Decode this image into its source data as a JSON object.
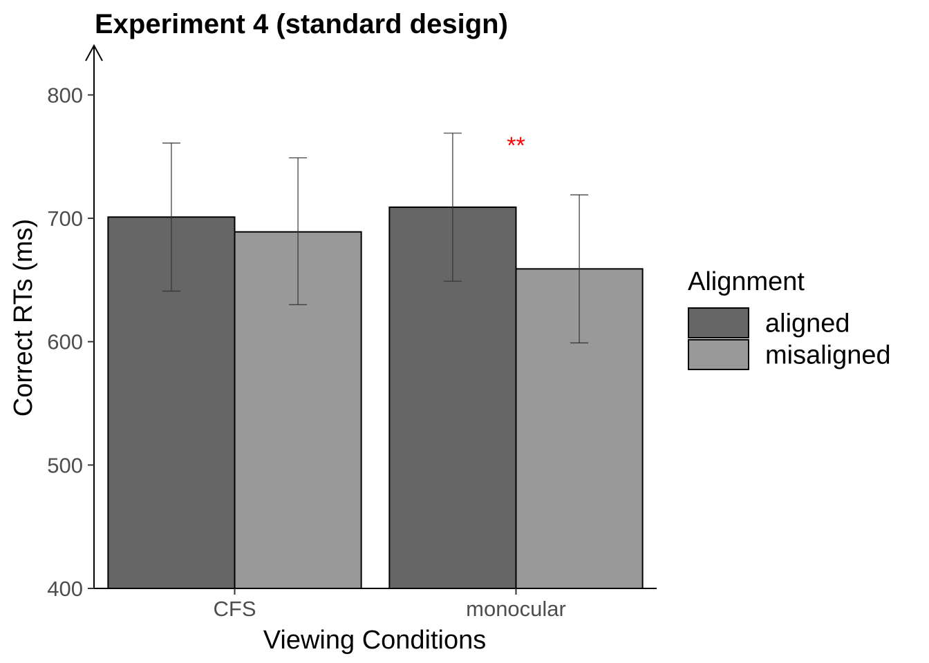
{
  "chart_data": {
    "type": "bar",
    "title": "Experiment 4 (standard design)",
    "xlabel": "Viewing Conditions",
    "ylabel": "Correct RTs (ms)",
    "categories": [
      "CFS",
      "monocular"
    ],
    "ylim": [
      400,
      840
    ],
    "yticks": [
      400,
      500,
      600,
      700,
      800
    ],
    "grid": false,
    "legend": {
      "title": "Alignment",
      "placement": "right"
    },
    "series": [
      {
        "name": "aligned",
        "color": "#666666",
        "values": [
          701,
          709
        ],
        "error_low": [
          641,
          649
        ],
        "error_high": [
          761,
          769
        ]
      },
      {
        "name": "misaligned",
        "color": "#999999",
        "values": [
          689,
          659
        ],
        "error_low": [
          630,
          599
        ],
        "error_high": [
          749,
          719
        ]
      }
    ],
    "annotations": [
      {
        "text": "**",
        "color": "#ff0000",
        "category": "monocular",
        "value": 765
      }
    ]
  }
}
